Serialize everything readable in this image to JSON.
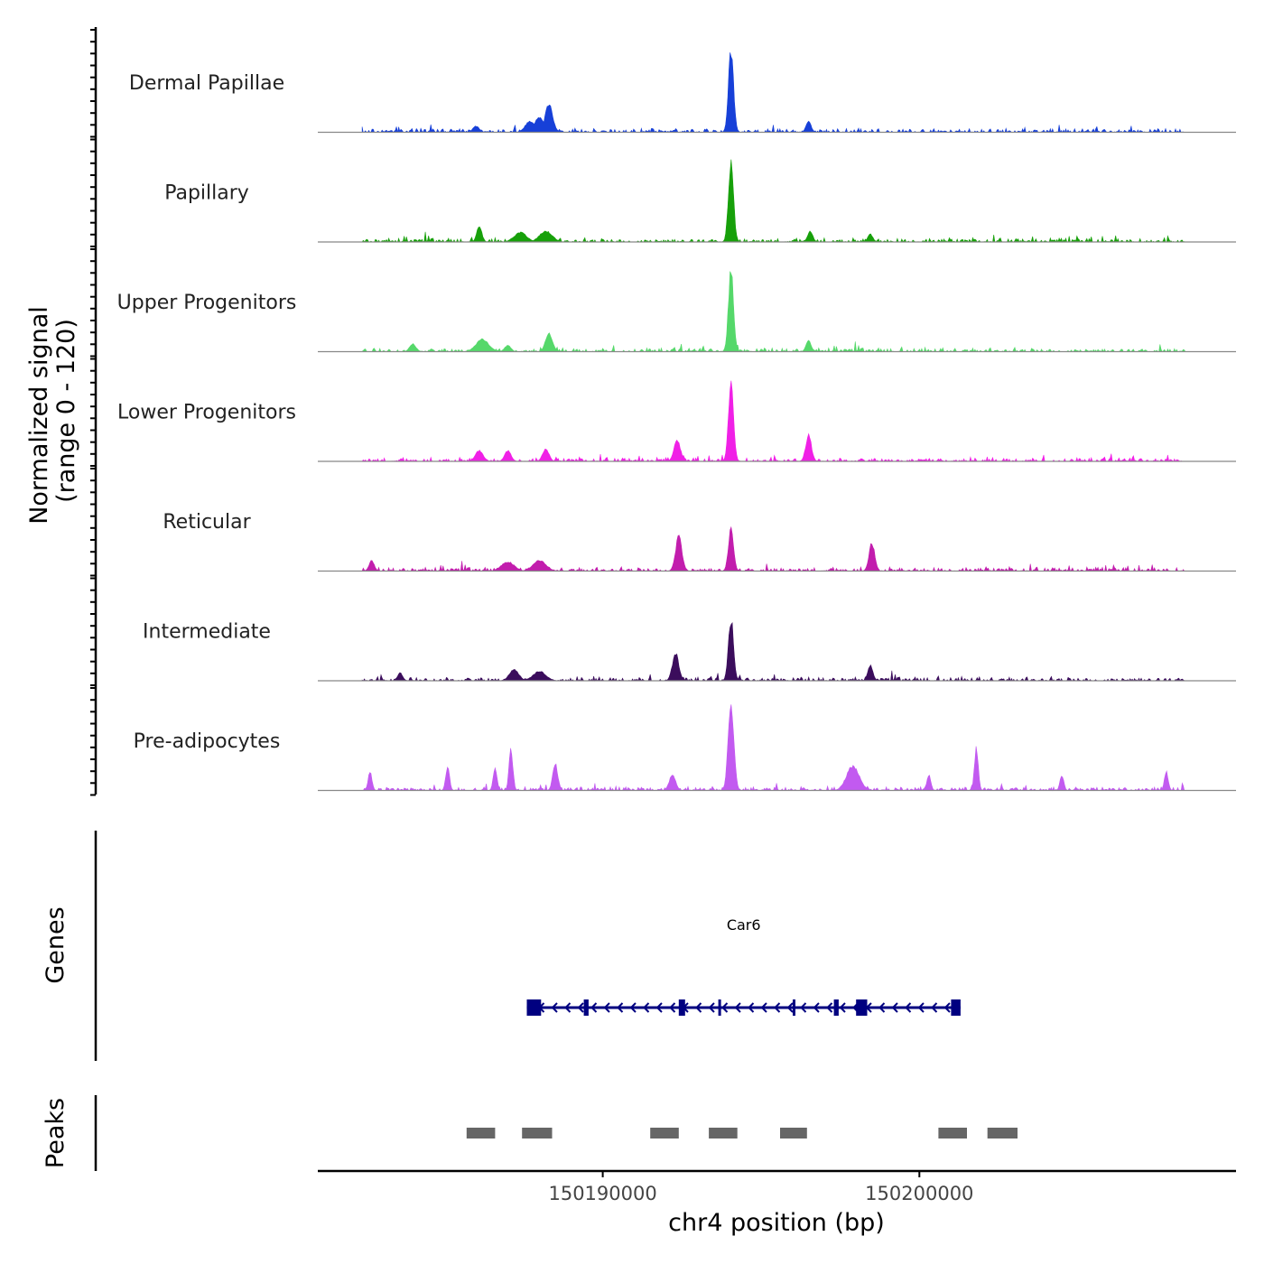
{
  "chart_data": {
    "type": "area",
    "title": "",
    "chromosome": "chr4",
    "xlabel": "chr4 position (bp)",
    "ylabel_line1": "Normalized signal",
    "ylabel_line2": "(range 0 - 120)",
    "ylim": [
      0,
      120
    ],
    "xlim": [
      150181000,
      150210000
    ],
    "xticks": [
      {
        "value": 150190000,
        "label": "150190000"
      },
      {
        "value": 150200000,
        "label": "150200000"
      }
    ],
    "signal_range_bp": [
      150182400,
      150208400
    ],
    "baseline_noise": 4,
    "series": [
      {
        "name": "Dermal Papillae",
        "color": "#1740D8",
        "peaks": [
          [
            150194050,
            105,
            80
          ],
          [
            150188300,
            35,
            120
          ],
          [
            150188000,
            20,
            150
          ],
          [
            150187700,
            14,
            150
          ],
          [
            150196500,
            14,
            80
          ],
          [
            150186000,
            8,
            100
          ]
        ]
      },
      {
        "name": "Papillary",
        "color": "#17A00A",
        "peaks": [
          [
            150194050,
            105,
            80
          ],
          [
            150186100,
            20,
            80
          ],
          [
            150188200,
            14,
            200
          ],
          [
            150187400,
            12,
            200
          ],
          [
            150196550,
            14,
            80
          ],
          [
            150198450,
            10,
            80
          ]
        ]
      },
      {
        "name": "Upper Progenitors",
        "color": "#55D86A",
        "peaks": [
          [
            150194050,
            105,
            80
          ],
          [
            150188300,
            24,
            110
          ],
          [
            150186200,
            16,
            200
          ],
          [
            150184000,
            10,
            100
          ],
          [
            150196500,
            14,
            80
          ],
          [
            150187000,
            8,
            100
          ]
        ]
      },
      {
        "name": "Lower Progenitors",
        "color": "#F020E6",
        "peaks": [
          [
            150194050,
            105,
            80
          ],
          [
            150192350,
            28,
            100
          ],
          [
            150196500,
            34,
            90
          ],
          [
            150188200,
            16,
            100
          ],
          [
            150187000,
            14,
            100
          ],
          [
            150186100,
            14,
            120
          ]
        ]
      },
      {
        "name": "Reticular",
        "color": "#C21DAD",
        "peaks": [
          [
            150194050,
            55,
            80
          ],
          [
            150192400,
            44,
            100
          ],
          [
            150198500,
            36,
            90
          ],
          [
            150182700,
            14,
            80
          ],
          [
            150188000,
            14,
            200
          ],
          [
            150187000,
            12,
            200
          ]
        ]
      },
      {
        "name": "Intermediate",
        "color": "#3B0D5C",
        "peaks": [
          [
            150194050,
            80,
            80
          ],
          [
            150192300,
            36,
            100
          ],
          [
            150198450,
            20,
            80
          ],
          [
            150187200,
            14,
            150
          ],
          [
            150188000,
            12,
            200
          ],
          [
            150183600,
            10,
            80
          ]
        ]
      },
      {
        "name": "Pre-adipocytes",
        "color": "#C25AF0",
        "peaks": [
          [
            150194050,
            112,
            90
          ],
          [
            150187100,
            55,
            60
          ],
          [
            150201800,
            55,
            60
          ],
          [
            150188500,
            34,
            80
          ],
          [
            150185100,
            30,
            60
          ],
          [
            150186600,
            28,
            60
          ],
          [
            150182650,
            24,
            60
          ],
          [
            150197900,
            32,
            200
          ],
          [
            150207800,
            24,
            60
          ],
          [
            150192200,
            20,
            100
          ],
          [
            150200300,
            20,
            60
          ],
          [
            150204500,
            20,
            60
          ]
        ]
      }
    ],
    "genes": [
      {
        "name": "Car6",
        "start": 150187600,
        "end": 150201300,
        "strand": "-",
        "exons": [
          [
            150187600,
            150188050
          ],
          [
            150189400,
            150189550
          ],
          [
            150192400,
            150192600
          ],
          [
            150193650,
            150193720
          ],
          [
            150196000,
            150196080
          ],
          [
            150197300,
            150197450
          ],
          [
            150198000,
            150198350
          ],
          [
            150201000,
            150201300
          ]
        ]
      }
    ],
    "gene_color": "#000080",
    "peak_regions": [
      [
        150185700,
        150186600
      ],
      [
        150187450,
        150188400
      ],
      [
        150191500,
        150192400
      ],
      [
        150193350,
        150194250
      ],
      [
        150195600,
        150196450
      ],
      [
        150200600,
        150201500
      ],
      [
        150202150,
        150203100
      ]
    ],
    "peak_color": "#666666",
    "track_titles": {
      "genes": "Genes",
      "peaks": "Peaks"
    }
  }
}
